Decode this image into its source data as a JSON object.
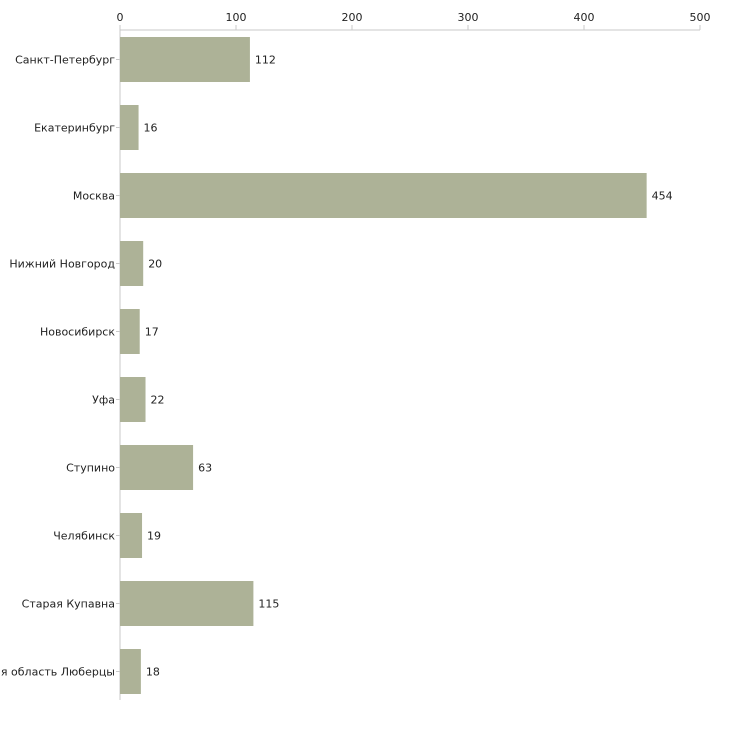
{
  "chart_data": {
    "type": "bar",
    "orientation": "horizontal",
    "title": "",
    "xlabel": "",
    "ylabel": "",
    "xlim": [
      0,
      500
    ],
    "xticks": [
      0,
      100,
      200,
      300,
      400,
      500
    ],
    "grid": false,
    "legend": "none",
    "bar_color": "#adb297",
    "categories": [
      "Санкт-Петербург",
      "Екатеринбург",
      "Москва",
      "Нижний Новгород",
      "Новосибирск",
      "Уфа",
      "Ступино",
      "Челябинск",
      "Старая Купавна",
      "Московская область Люберцы"
    ],
    "values": [
      112,
      16,
      454,
      20,
      17,
      22,
      63,
      19,
      115,
      18
    ]
  }
}
